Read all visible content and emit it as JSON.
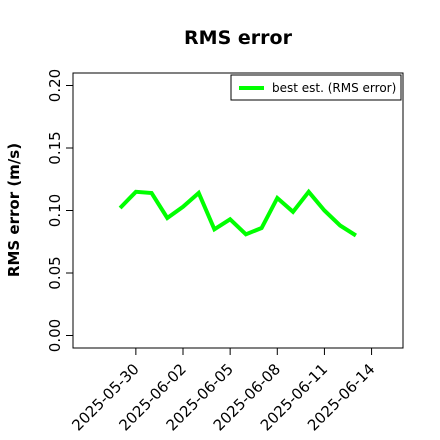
{
  "chart_data": {
    "type": "line",
    "title": "RMS error",
    "xlabel": "",
    "ylabel": "RMS error (m/s)",
    "xlim": [
      "2025-05-26",
      "2025-06-16"
    ],
    "ylim": [
      -0.01,
      0.21
    ],
    "x_ticks": [
      "2025-05-30",
      "2025-06-02",
      "2025-06-05",
      "2025-06-08",
      "2025-06-11",
      "2025-06-14"
    ],
    "x_tick_colors": [
      "#000000",
      "#000000",
      "#228B22",
      "#000000",
      "#000000",
      "#000000"
    ],
    "y_ticks": [
      "0.00",
      "0.05",
      "0.10",
      "0.15",
      "0.20"
    ],
    "grid": false,
    "legend": {
      "position": "top-right",
      "entries": [
        "best est. (RMS error)"
      ]
    },
    "series": [
      {
        "name": "best est. (RMS error)",
        "color": "#00ff00",
        "x": [
          "2025-05-29",
          "2025-05-30",
          "2025-05-31",
          "2025-06-01",
          "2025-06-02",
          "2025-06-03",
          "2025-06-04",
          "2025-06-05",
          "2025-06-06",
          "2025-06-07",
          "2025-06-08",
          "2025-06-09",
          "2025-06-10",
          "2025-06-11",
          "2025-06-12",
          "2025-06-13"
        ],
        "values": [
          0.102,
          0.115,
          0.114,
          0.094,
          0.103,
          0.114,
          0.085,
          0.093,
          0.081,
          0.086,
          0.11,
          0.099,
          0.115,
          0.1,
          0.088,
          0.08
        ]
      }
    ]
  }
}
